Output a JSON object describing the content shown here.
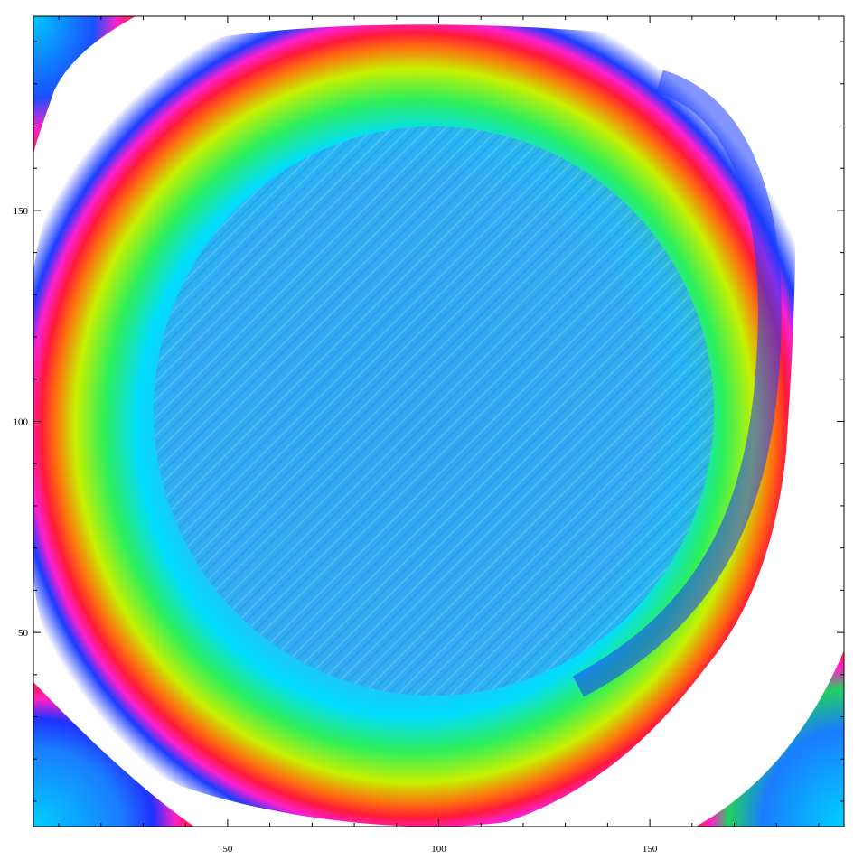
{
  "chart_data": {
    "type": "heatmap",
    "title": "",
    "xlabel": "",
    "ylabel": "",
    "xlim": [
      4,
      196
    ],
    "ylim": [
      4,
      196
    ],
    "x_ticks": [
      50,
      100,
      150
    ],
    "y_ticks": [
      50,
      100,
      150
    ],
    "x_tick_labels": [
      "50",
      "100",
      "150"
    ],
    "y_tick_labels": [
      "50",
      "100",
      "150"
    ],
    "grid": false,
    "frame": true,
    "colormap": "rainbow: cyan/light-blue interior, green-yellow band, red then magenta near the boundary, white outside the valid region",
    "colors": {
      "interior": "#2aa9f0",
      "inner_band": "#00dcff",
      "green_band": "#2ef05a",
      "yellow_band": "#d4f000",
      "red_band": "#ff2a1a",
      "magenta_band": "#ff1fd0",
      "dark_blue": "#1040ff",
      "background": "#ffffff"
    }
  }
}
